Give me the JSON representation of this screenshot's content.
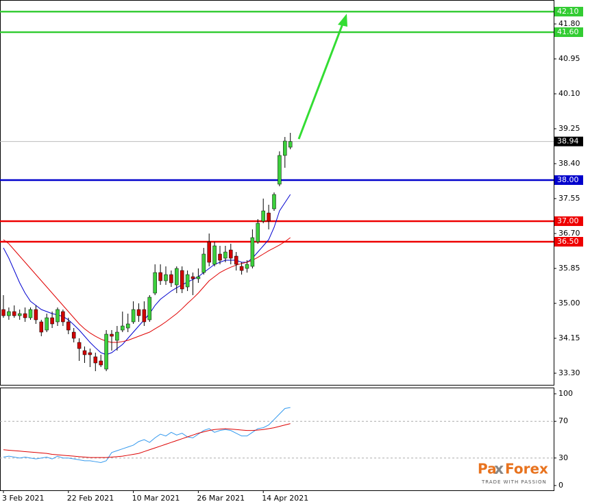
{
  "chart_data": [
    {
      "type": "candlestick",
      "categories": [
        "3 Feb 2021",
        null,
        null,
        null,
        null,
        null,
        null,
        null,
        null,
        null,
        null,
        null,
        "22 Feb 2021",
        null,
        null,
        null,
        null,
        null,
        null,
        null,
        null,
        null,
        null,
        null,
        "10 Mar 2021",
        null,
        null,
        null,
        null,
        null,
        null,
        null,
        null,
        null,
        null,
        null,
        "26 Mar 2021",
        null,
        null,
        null,
        null,
        null,
        null,
        null,
        null,
        null,
        null,
        null,
        "14 Apr 2021",
        null,
        null,
        null,
        null,
        null
      ],
      "open": [
        34.85,
        34.7,
        34.8,
        34.7,
        34.75,
        34.65,
        34.85,
        34.55,
        34.35,
        34.65,
        34.55,
        34.8,
        34.55,
        34.3,
        34.05,
        33.85,
        33.8,
        33.7,
        33.6,
        33.4,
        34.25,
        34.1,
        34.35,
        34.4,
        34.55,
        34.85,
        34.85,
        34.6,
        35.25,
        35.75,
        35.55,
        35.7,
        35.45,
        35.8,
        35.4,
        35.65,
        35.6,
        35.75,
        36.5,
        35.95,
        36.2,
        36.1,
        36.3,
        36.15,
        35.9,
        35.85,
        35.9,
        36.5,
        37.0,
        37.2,
        37.3,
        37.9,
        38.6,
        38.8
      ],
      "high": [
        35.2,
        34.9,
        34.95,
        34.85,
        34.9,
        34.9,
        34.95,
        34.6,
        34.75,
        34.8,
        34.9,
        34.85,
        34.65,
        34.4,
        34.15,
        33.95,
        33.9,
        33.8,
        33.75,
        34.35,
        34.35,
        34.45,
        34.8,
        34.75,
        35.05,
        35.0,
        35.05,
        35.2,
        35.95,
        35.95,
        35.9,
        35.8,
        35.9,
        35.9,
        35.8,
        35.75,
        35.85,
        36.35,
        36.7,
        36.5,
        36.4,
        36.4,
        36.45,
        36.25,
        36.0,
        36.05,
        36.8,
        37.05,
        37.55,
        37.4,
        37.7,
        38.7,
        39.05,
        39.15
      ],
      "low": [
        34.65,
        34.6,
        34.65,
        34.6,
        34.55,
        34.6,
        34.5,
        34.2,
        34.3,
        34.4,
        34.45,
        34.45,
        34.25,
        34.05,
        33.6,
        33.55,
        33.45,
        33.35,
        33.45,
        33.35,
        33.85,
        33.85,
        34.3,
        34.3,
        34.5,
        34.55,
        34.45,
        34.55,
        35.2,
        35.45,
        35.45,
        35.4,
        35.25,
        35.25,
        35.3,
        35.2,
        35.5,
        35.7,
        35.9,
        35.9,
        35.95,
        36.0,
        35.95,
        35.8,
        35.7,
        35.75,
        35.85,
        36.45,
        36.95,
        36.8,
        37.25,
        37.85,
        38.3,
        38.75
      ],
      "close": [
        34.7,
        34.8,
        34.7,
        34.75,
        34.65,
        34.85,
        34.6,
        34.3,
        34.65,
        34.5,
        34.85,
        34.55,
        34.35,
        34.15,
        33.9,
        33.75,
        33.75,
        33.55,
        33.5,
        34.25,
        34.2,
        34.3,
        34.45,
        34.5,
        34.85,
        34.7,
        34.55,
        35.15,
        35.75,
        35.55,
        35.7,
        35.5,
        35.85,
        35.35,
        35.7,
        35.6,
        35.65,
        36.2,
        36.0,
        36.4,
        36.05,
        36.25,
        36.1,
        35.95,
        35.8,
        35.95,
        36.6,
        36.95,
        37.25,
        37.0,
        37.65,
        38.6,
        38.95,
        38.94
      ],
      "up_color": "#3ccf3c",
      "down_color": "#d00000",
      "series": [
        {
          "color": "#0000d0",
          "values": [
            36.35,
            36.1,
            35.8,
            35.5,
            35.25,
            35.05,
            34.95,
            34.85,
            34.8,
            34.75,
            34.72,
            34.68,
            34.6,
            34.48,
            34.35,
            34.2,
            34.05,
            33.92,
            33.8,
            33.75,
            33.8,
            33.9,
            34.0,
            34.15,
            34.3,
            34.45,
            34.6,
            34.75,
            34.95,
            35.1,
            35.2,
            35.3,
            35.38,
            35.45,
            35.52,
            35.58,
            35.65,
            35.75,
            35.85,
            35.95,
            36.0,
            36.05,
            36.05,
            36.05,
            36.0,
            36.0,
            36.1,
            36.25,
            36.4,
            36.55,
            36.85,
            37.25,
            37.45,
            37.65
          ]
        },
        {
          "color": "#e00000",
          "values": [
            36.55,
            36.45,
            36.3,
            36.15,
            36.0,
            35.85,
            35.7,
            35.55,
            35.4,
            35.25,
            35.1,
            34.95,
            34.8,
            34.65,
            34.5,
            34.38,
            34.28,
            34.2,
            34.13,
            34.08,
            34.05,
            34.05,
            34.07,
            34.1,
            34.15,
            34.2,
            34.25,
            34.3,
            34.38,
            34.46,
            34.55,
            34.65,
            34.75,
            34.87,
            35.0,
            35.12,
            35.25,
            35.4,
            35.55,
            35.65,
            35.75,
            35.82,
            35.88,
            35.93,
            35.97,
            36.0,
            36.05,
            36.12,
            36.2,
            36.28,
            36.35,
            36.42,
            36.5,
            36.6
          ]
        }
      ],
      "levels": [
        {
          "value": 42.1,
          "label": "42.10",
          "color": "#33cc33"
        },
        {
          "value": 41.6,
          "label": "41.60",
          "color": "#33cc33"
        },
        {
          "value": 38.94,
          "label": "38.94",
          "color": "#000000"
        },
        {
          "value": 38.0,
          "label": "38.00",
          "color": "#0000cc"
        },
        {
          "value": 37.0,
          "label": "37.00",
          "color": "#ee0000"
        },
        {
          "value": 36.5,
          "label": "36.50",
          "color": "#ee0000"
        }
      ],
      "ylim": [
        33.017,
        42.383
      ],
      "yticks": [
        {
          "value": 33.3,
          "label": "33.30"
        },
        {
          "value": 34.15,
          "label": "34.15"
        },
        {
          "value": 35.0,
          "label": "35.00"
        },
        {
          "value": 35.85,
          "label": "35.85"
        },
        {
          "value": 36.7,
          "label": "36.70"
        },
        {
          "value": 37.55,
          "label": "37.55"
        },
        {
          "value": 38.4,
          "label": "38.40"
        },
        {
          "value": 39.25,
          "label": "39.25"
        },
        {
          "value": 40.1,
          "label": "40.10"
        },
        {
          "value": 40.95,
          "label": "40.95"
        },
        {
          "value": 41.8,
          "label": "41.80"
        }
      ]
    },
    {
      "type": "line",
      "series": [
        {
          "color": "#3399ee",
          "values": [
            31,
            32,
            31,
            30,
            31,
            30,
            29,
            30,
            31,
            29,
            32,
            30,
            30,
            29,
            28,
            27,
            27,
            26,
            25,
            27,
            36,
            38,
            40,
            42,
            44,
            48,
            50,
            47,
            52,
            56,
            54,
            58,
            55,
            57,
            53,
            52,
            56,
            60,
            62,
            58,
            60,
            61,
            60,
            57,
            54,
            54,
            58,
            62,
            63,
            66,
            72,
            78,
            84,
            85
          ]
        },
        {
          "color": "#dd0000",
          "values": [
            39,
            38.5,
            38,
            37.5,
            37,
            36.5,
            36,
            35.5,
            35,
            34,
            33.5,
            33,
            32.5,
            32,
            31.5,
            31,
            30.5,
            30.5,
            30.5,
            30.5,
            31,
            31.5,
            32,
            33,
            34,
            35,
            37,
            39,
            41,
            43,
            45,
            47,
            49,
            51,
            53,
            55,
            57,
            58.5,
            60,
            61,
            61.5,
            62,
            61.5,
            61,
            60.5,
            60,
            60,
            60.5,
            61,
            62,
            63,
            64.5,
            66,
            67.5
          ]
        }
      ],
      "levels": [
        70,
        30
      ],
      "ylim": [
        -5.2,
        106
      ],
      "yticks": [
        0,
        30,
        70,
        100
      ]
    }
  ],
  "logo": {
    "name_left": "Pa",
    "name_x": "x",
    "name_right": "Forex",
    "tagline": "TRADE WITH PASSION"
  }
}
